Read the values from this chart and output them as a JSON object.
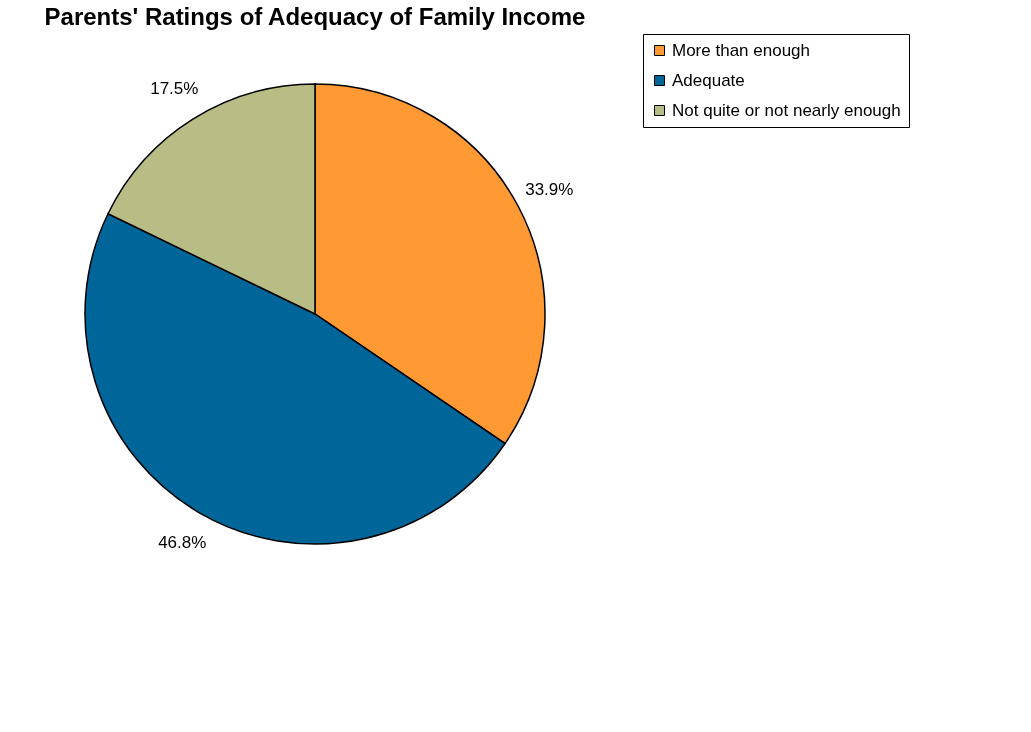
{
  "chart_data": {
    "type": "pie",
    "title": "Parents' Ratings of Adequacy of Family Income",
    "categories": [
      "More than enough",
      "Adequate",
      "Not quite or not nearly enough"
    ],
    "values": [
      33.9,
      46.8,
      17.5
    ],
    "colors": [
      "#ff9933",
      "#006699",
      "#b8bd85"
    ],
    "value_labels": [
      "33.9%",
      "46.8%",
      "17.5%"
    ],
    "legend": "right"
  }
}
